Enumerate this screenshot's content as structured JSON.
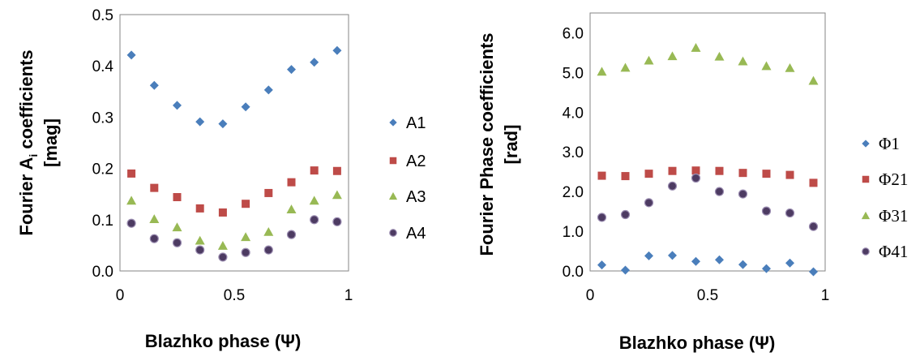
{
  "chart_data": [
    {
      "type": "scatter",
      "title": "",
      "xlabel": "Blazhko phase (Ψ)",
      "ylabel_line1": "Fourier A",
      "ylabel_sub": "i",
      "ylabel_line1_suffix": " coefficients",
      "ylabel_line2": "[mag]",
      "xlim": [
        0,
        1
      ],
      "ylim": [
        0,
        0.5
      ],
      "xticks": [
        "0",
        "0.5",
        "1"
      ],
      "yticks": [
        "0.0",
        "0.1",
        "0.2",
        "0.3",
        "0.4",
        "0.5"
      ],
      "ytick_values": [
        0,
        0.1,
        0.2,
        0.3,
        0.4,
        0.5
      ],
      "xtick_values": [
        0,
        0.5,
        1
      ],
      "legend_placement": "right",
      "x": [
        0.05,
        0.15,
        0.25,
        0.35,
        0.45,
        0.55,
        0.65,
        0.75,
        0.85,
        0.95
      ],
      "series": [
        {
          "name": "A1",
          "marker": "diamond",
          "color": "#4a7ebb",
          "values": [
            0.421,
            0.362,
            0.323,
            0.291,
            0.287,
            0.32,
            0.353,
            0.393,
            0.407,
            0.43
          ]
        },
        {
          "name": "A2",
          "marker": "square",
          "color": "#be4b48",
          "values": [
            0.19,
            0.162,
            0.144,
            0.122,
            0.114,
            0.131,
            0.152,
            0.173,
            0.196,
            0.195
          ]
        },
        {
          "name": "A3",
          "marker": "triangle",
          "color": "#98b954",
          "values": [
            0.137,
            0.101,
            0.085,
            0.059,
            0.049,
            0.066,
            0.076,
            0.12,
            0.137,
            0.148
          ]
        },
        {
          "name": "A4",
          "marker": "circle",
          "color": "#4d3b62",
          "values": [
            0.093,
            0.063,
            0.055,
            0.041,
            0.027,
            0.036,
            0.041,
            0.071,
            0.1,
            0.096
          ]
        }
      ]
    },
    {
      "type": "scatter",
      "title": "",
      "xlabel": "Blazhko phase (Ψ)",
      "ylabel_line1": "Fourier Phase coefficients",
      "ylabel_line2": "[rad]",
      "xlim": [
        0,
        1
      ],
      "ylim": [
        0,
        6.5
      ],
      "xticks": [
        "0",
        "0.5",
        "1"
      ],
      "yticks": [
        "0.0",
        "1.0",
        "2.0",
        "3.0",
        "4.0",
        "5.0",
        "6.0"
      ],
      "ytick_values": [
        0,
        1,
        2,
        3,
        4,
        5,
        6
      ],
      "xtick_values": [
        0,
        0.5,
        1
      ],
      "legend_placement": "right",
      "x": [
        0.05,
        0.15,
        0.25,
        0.35,
        0.45,
        0.55,
        0.65,
        0.75,
        0.85,
        0.95
      ],
      "series": [
        {
          "name": "Φ1",
          "marker": "diamond",
          "color": "#4a7ebb",
          "values": [
            0.15,
            0.02,
            0.38,
            0.39,
            0.24,
            0.28,
            0.16,
            0.06,
            0.2,
            -0.02
          ]
        },
        {
          "name": "Φ21",
          "marker": "square",
          "color": "#be4b48",
          "values": [
            2.4,
            2.39,
            2.45,
            2.52,
            2.53,
            2.52,
            2.47,
            2.45,
            2.42,
            2.22
          ]
        },
        {
          "name": "Φ31",
          "marker": "triangle",
          "color": "#98b954",
          "values": [
            5.02,
            5.12,
            5.3,
            5.41,
            5.62,
            5.4,
            5.28,
            5.16,
            5.11,
            4.79
          ]
        },
        {
          "name": "Φ41",
          "marker": "circle",
          "color": "#4d3b62",
          "values": [
            1.35,
            1.42,
            1.72,
            2.14,
            2.34,
            2.0,
            1.94,
            1.51,
            1.46,
            1.12
          ]
        }
      ]
    }
  ]
}
